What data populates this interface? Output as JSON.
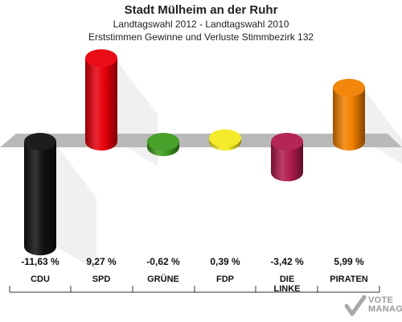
{
  "header": {
    "title": "Stadt Mülheim an der Ruhr",
    "subtitle1": "Landtagswahl 2012 - Landtagswahl 2010",
    "subtitle2": "Erststimmen Gewinne und Verluste Stimmbezirk 132"
  },
  "chart_data": {
    "type": "bar",
    "categories": [
      "CDU",
      "SPD",
      "GRÜNE",
      "FDP",
      "DIE LINKE",
      "PIRATEN"
    ],
    "values": [
      -11.63,
      9.27,
      -0.62,
      0.39,
      -3.42,
      5.99
    ],
    "value_labels": [
      "-11,63 %",
      "9,27 %",
      "-0,62 %",
      "0,39 %",
      "-3,42 %",
      "5,99 %"
    ],
    "colors": [
      "#111111",
      "#e8000b",
      "#3f9b1f",
      "#f4ea1f",
      "#b01b4e",
      "#f28000"
    ],
    "title": "Stadt Mülheim an der Ruhr",
    "grid": false
  },
  "labels": {
    "cat_dielinke_line1": "DIE",
    "cat_dielinke_line2": "LINKE"
  },
  "watermark": {
    "line1": "VOTE",
    "line2": "MANAGER"
  }
}
